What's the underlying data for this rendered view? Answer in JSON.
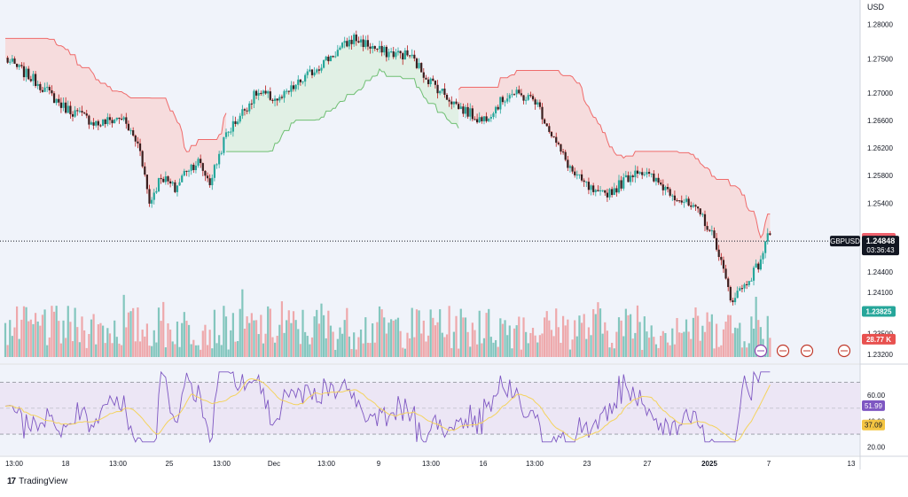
{
  "currency_label": "USD",
  "brand": "TradingView",
  "colors": {
    "up": "#5fb7a9",
    "down": "#ee8f90",
    "up_fill": "#dff0e2",
    "down_fill": "#f6d9d9",
    "stop_line_down": "#ef6b6b",
    "stop_line_up": "#6fbf73",
    "rsi_line": "#7e57c2",
    "rsi_ma": "#f4d35e",
    "rsi_band": "#ece6f5",
    "price_line": "#131722",
    "bg": "#f0f3fa"
  },
  "chart_data": [
    {
      "type": "candlestick",
      "symbol": "GBPUSD",
      "current_price": "1.24848",
      "countdown": "03:36:43",
      "y_ticks": [
        "1.28000",
        "1.27500",
        "1.27000",
        "1.26600",
        "1.26200",
        "1.25800",
        "1.25400",
        "1.24400",
        "1.24100",
        "1.23500",
        "1.23200"
      ],
      "ylim": [
        1.232,
        1.282
      ],
      "x_ticks": [
        "13:00",
        "18",
        "13:00",
        "25",
        "13:00",
        "Dec",
        "13:00",
        "9",
        "13:00",
        "16",
        "13:00",
        "23",
        "27",
        "2025",
        "7",
        "13"
      ],
      "price_badges": [
        {
          "label": "1.24888",
          "value": 1.24888,
          "color": "#f0616d"
        },
        {
          "label": "1.23825",
          "value": 1.23825,
          "color": "#26a69a"
        },
        {
          "label": "28.77 K",
          "value": 1.2342,
          "color": "#e8514f"
        }
      ],
      "indicators": [
        "Volatility Stop (trailing band)",
        "Volume"
      ]
    },
    {
      "type": "line",
      "name": "RSI",
      "y_ticks": [
        "60.00",
        "40.00",
        "20.00"
      ],
      "ylim": [
        15,
        82
      ],
      "upper_band": 70,
      "lower_band": 30,
      "badges": [
        {
          "label": "51.99",
          "value": 51.99,
          "color": "#7e57c2"
        },
        {
          "label": "37.09",
          "value": 37.09,
          "color": "#f4c542"
        }
      ]
    }
  ]
}
